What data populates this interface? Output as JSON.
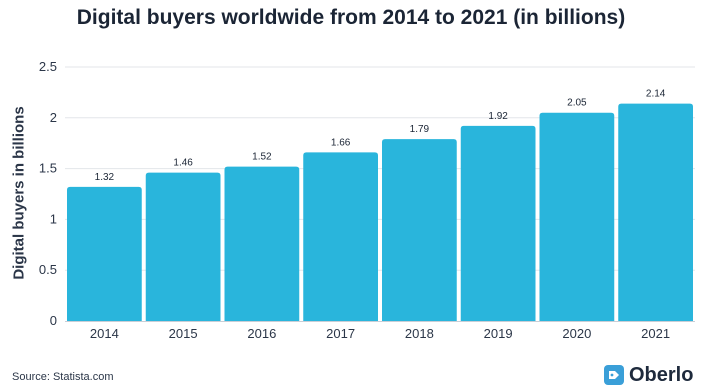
{
  "chart_data": {
    "type": "bar",
    "title": "Digital buyers worldwide from 2014 to 2021 (in billions)",
    "ylabel": "Digital buyers in billions",
    "xlabel": "",
    "categories": [
      "2014",
      "2015",
      "2016",
      "2017",
      "2018",
      "2019",
      "2020",
      "2021"
    ],
    "values": [
      1.32,
      1.46,
      1.52,
      1.66,
      1.79,
      1.92,
      2.05,
      2.14
    ],
    "ylim": [
      0,
      2.5
    ],
    "yticks": [
      "0",
      "0.5",
      "1",
      "1.5",
      "2",
      "2.5"
    ],
    "grid": true,
    "bar_color": "#29b5dc"
  },
  "footer": {
    "source": "Source: Statista.com",
    "brand": "Oberlo",
    "brand_color": "#3a9fd8"
  }
}
